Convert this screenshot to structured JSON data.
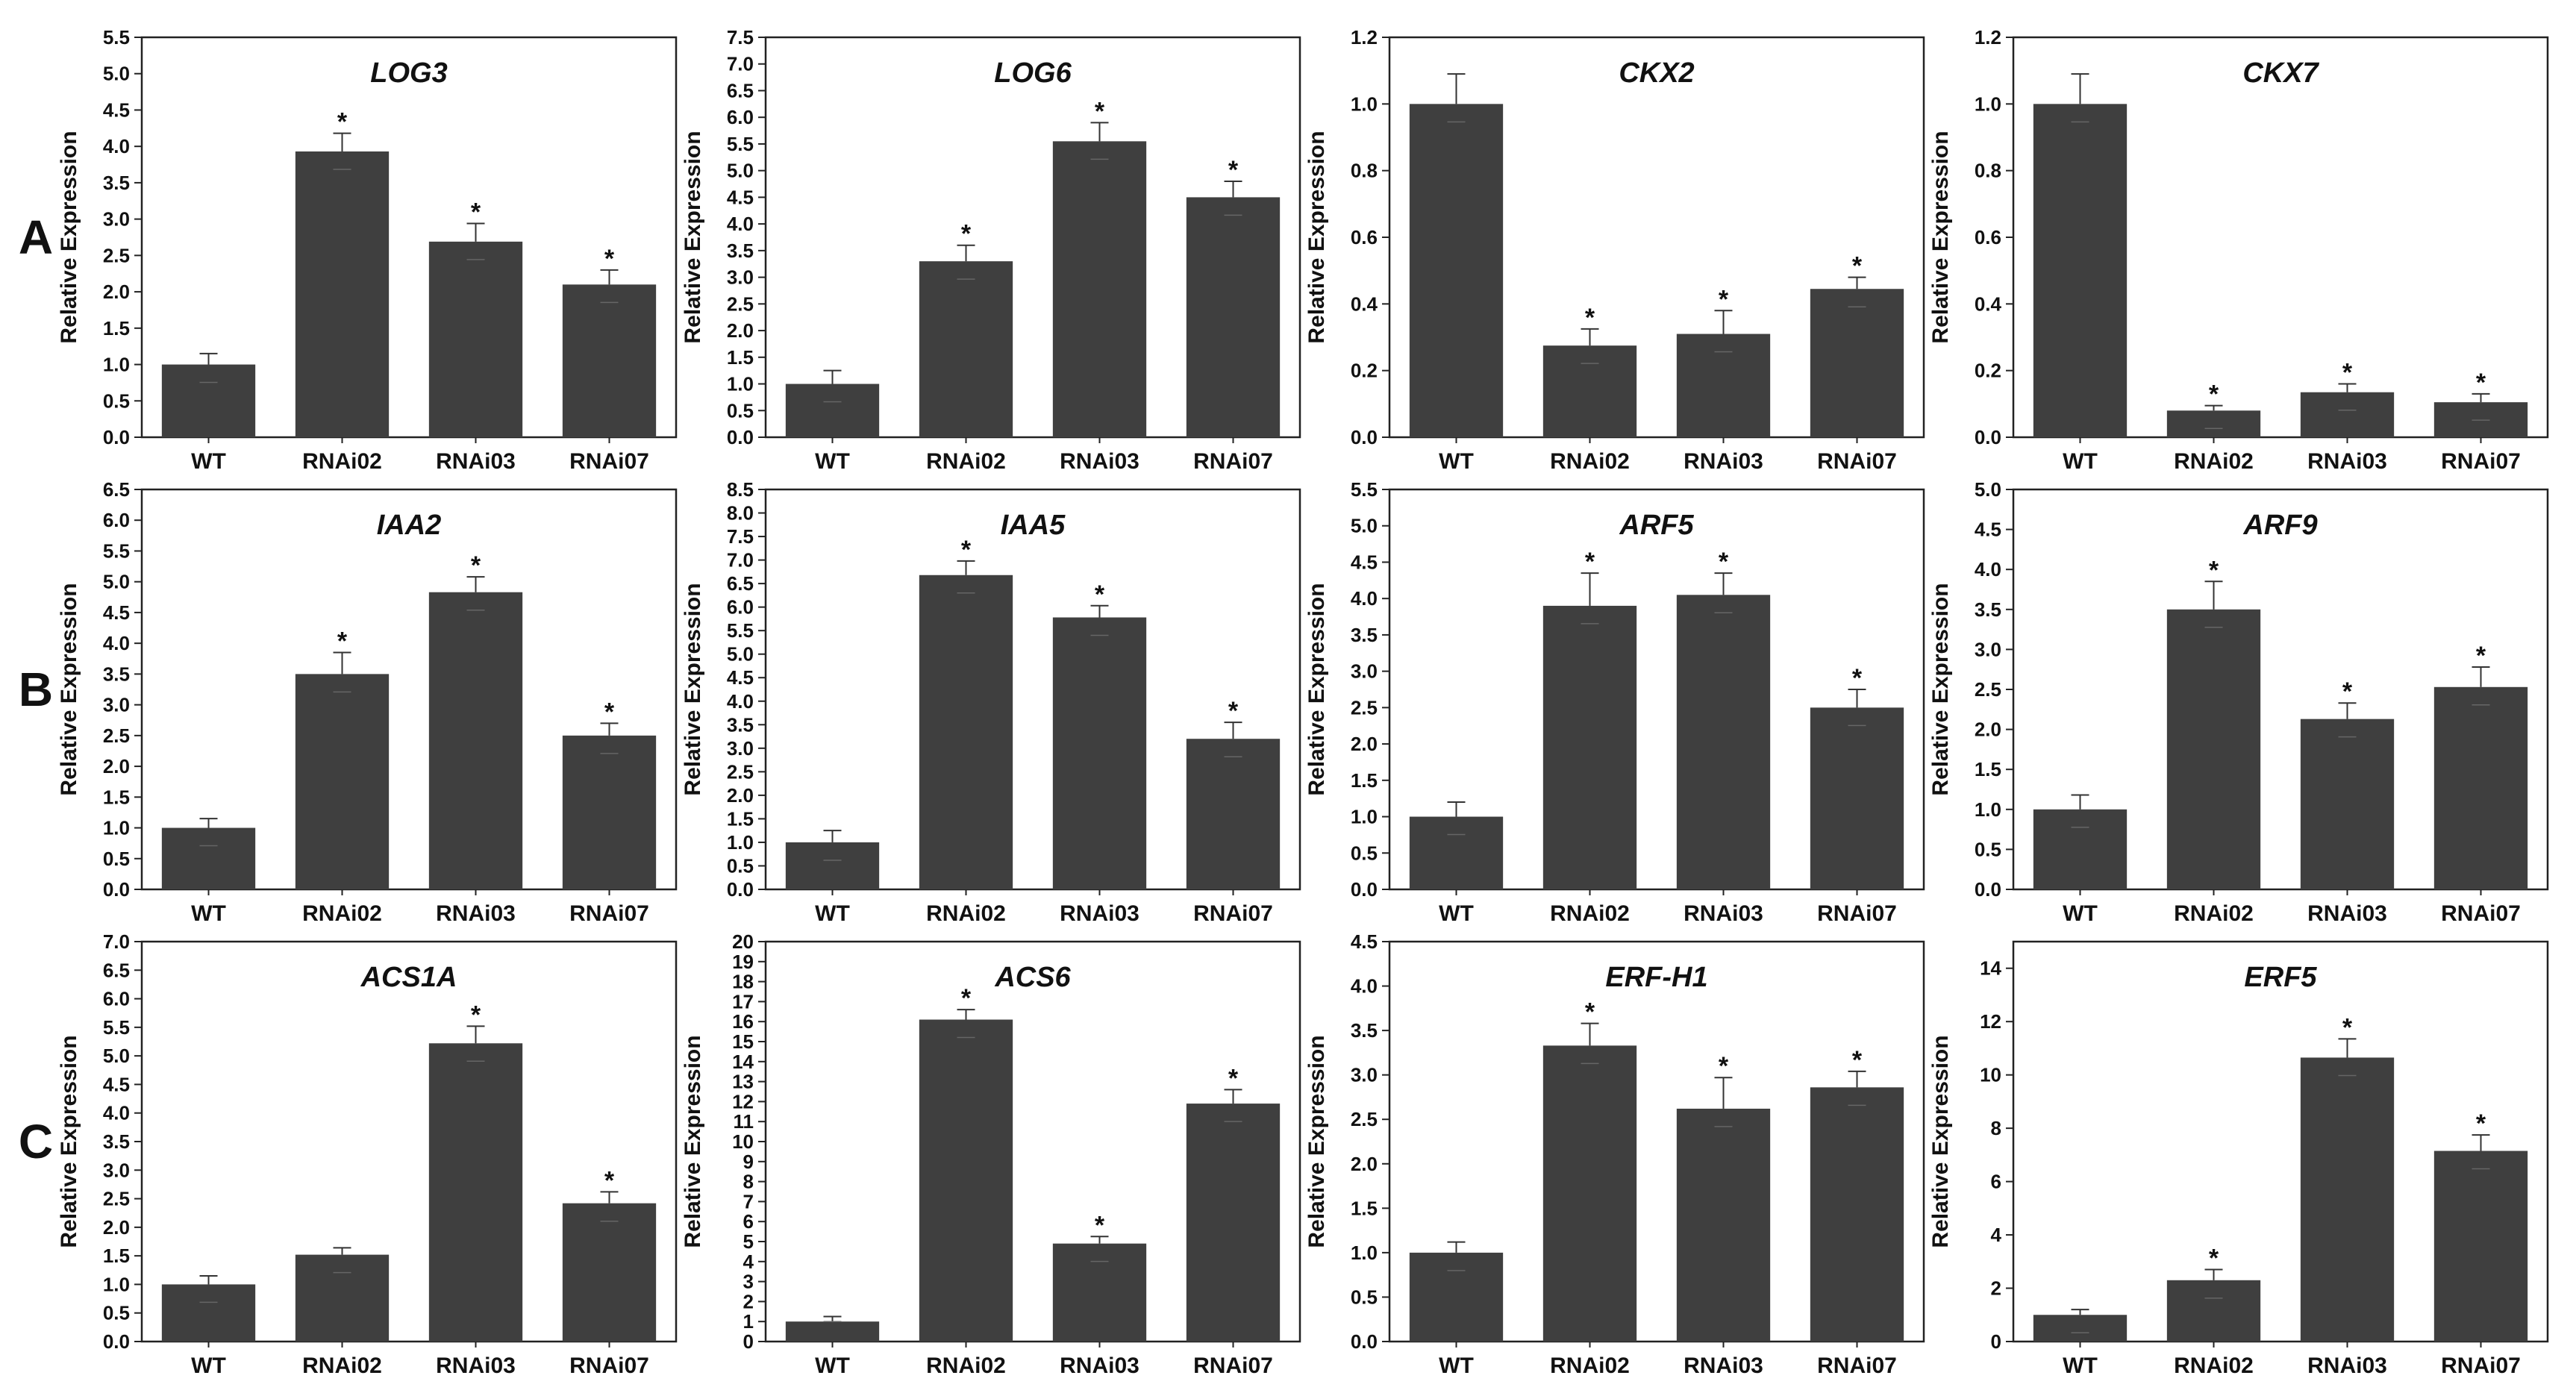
{
  "row_labels": [
    "A",
    "B",
    "C"
  ],
  "bar_color": "#3f3f3f",
  "chart_data": [
    {
      "type": "bar",
      "row": "A",
      "title": "LOG3",
      "ylabel": "Relative Expression",
      "categories": [
        "WT",
        "RNAi02",
        "RNAi03",
        "RNAi07"
      ],
      "values": [
        1.0,
        3.93,
        2.69,
        2.1
      ],
      "errors": [
        0.15,
        0.25,
        0.25,
        0.2
      ],
      "significant": [
        false,
        true,
        true,
        true
      ],
      "significance_label": "*",
      "ylim": [
        0,
        5.5
      ],
      "ytick_step": 0.5,
      "ytick_decimals": 1
    },
    {
      "type": "bar",
      "row": "A",
      "title": "LOG6",
      "ylabel": "Relative Expression",
      "categories": [
        "WT",
        "RNAi02",
        "RNAi03",
        "RNAi07"
      ],
      "values": [
        1.0,
        3.3,
        5.55,
        4.5
      ],
      "errors": [
        0.25,
        0.3,
        0.35,
        0.3
      ],
      "significant": [
        false,
        true,
        true,
        true
      ],
      "significance_label": "*",
      "ylim": [
        0,
        7.5
      ],
      "ytick_step": 0.5,
      "ytick_decimals": 1
    },
    {
      "type": "bar",
      "row": "A",
      "title": "CKX2",
      "ylabel": "Relative Expression",
      "categories": [
        "WT",
        "RNAi02",
        "RNAi03",
        "RNAi07"
      ],
      "values": [
        1.0,
        0.275,
        0.31,
        0.445
      ],
      "errors": [
        0.09,
        0.05,
        0.07,
        0.035
      ],
      "significant": [
        false,
        true,
        true,
        true
      ],
      "significance_label": "*",
      "ylim": [
        0,
        1.2
      ],
      "ytick_step": 0.2,
      "ytick_decimals": 1
    },
    {
      "type": "bar",
      "row": "A",
      "title": "CKX7",
      "ylabel": "Relative Expression",
      "categories": [
        "WT",
        "RNAi02",
        "RNAi03",
        "RNAi07"
      ],
      "values": [
        1.0,
        0.08,
        0.135,
        0.105
      ],
      "errors": [
        0.09,
        0.015,
        0.025,
        0.025
      ],
      "significant": [
        false,
        true,
        true,
        true
      ],
      "significance_label": "*",
      "ylim": [
        0,
        1.2
      ],
      "ytick_step": 0.2,
      "ytick_decimals": 1
    },
    {
      "type": "bar",
      "row": "B",
      "title": "IAA2",
      "ylabel": "Relative Expression",
      "categories": [
        "WT",
        "RNAi02",
        "RNAi03",
        "RNAi07"
      ],
      "values": [
        1.0,
        3.5,
        4.83,
        2.5
      ],
      "errors": [
        0.15,
        0.35,
        0.25,
        0.2
      ],
      "significant": [
        false,
        true,
        true,
        true
      ],
      "significance_label": "*",
      "ylim": [
        0,
        6.5
      ],
      "ytick_step": 0.5,
      "ytick_decimals": 1
    },
    {
      "type": "bar",
      "row": "B",
      "title": "IAA5",
      "ylabel": "Relative Expression",
      "categories": [
        "WT",
        "RNAi02",
        "RNAi03",
        "RNAi07"
      ],
      "values": [
        1.0,
        6.68,
        5.78,
        3.2
      ],
      "errors": [
        0.25,
        0.3,
        0.25,
        0.35
      ],
      "significant": [
        false,
        true,
        true,
        true
      ],
      "significance_label": "*",
      "ylim": [
        0,
        8.5
      ],
      "ytick_step": 0.5,
      "ytick_decimals": 1
    },
    {
      "type": "bar",
      "row": "B",
      "title": "ARF5",
      "ylabel": "Relative Expression",
      "categories": [
        "WT",
        "RNAi02",
        "RNAi03",
        "RNAi07"
      ],
      "values": [
        1.0,
        3.9,
        4.05,
        2.5
      ],
      "errors": [
        0.2,
        0.45,
        0.3,
        0.25
      ],
      "significant": [
        false,
        true,
        true,
        true
      ],
      "significance_label": "*",
      "ylim": [
        0,
        5.5
      ],
      "ytick_step": 0.5,
      "ytick_decimals": 1
    },
    {
      "type": "bar",
      "row": "B",
      "title": "ARF9",
      "ylabel": "Relative Expression",
      "categories": [
        "WT",
        "RNAi02",
        "RNAi03",
        "RNAi07"
      ],
      "values": [
        1.0,
        3.5,
        2.13,
        2.53
      ],
      "errors": [
        0.18,
        0.35,
        0.2,
        0.25
      ],
      "significant": [
        false,
        true,
        true,
        true
      ],
      "significance_label": "*",
      "ylim": [
        0,
        5.0
      ],
      "ytick_step": 0.5,
      "ytick_decimals": 1
    },
    {
      "type": "bar",
      "row": "C",
      "title": "ACS1A",
      "ylabel": "Relative Expression",
      "categories": [
        "WT",
        "RNAi02",
        "RNAi03",
        "RNAi07"
      ],
      "values": [
        1.0,
        1.52,
        5.22,
        2.42
      ],
      "errors": [
        0.15,
        0.12,
        0.3,
        0.2
      ],
      "significant": [
        false,
        false,
        true,
        true
      ],
      "significance_label": "*",
      "ylim": [
        0,
        7.0
      ],
      "ytick_step": 0.5,
      "ytick_decimals": 1
    },
    {
      "type": "bar",
      "row": "C",
      "title": "ACS6",
      "ylabel": "Relative Expression",
      "categories": [
        "WT",
        "RNAi02",
        "RNAi03",
        "RNAi07"
      ],
      "values": [
        1.0,
        16.1,
        4.9,
        11.9
      ],
      "errors": [
        0.25,
        0.5,
        0.35,
        0.7
      ],
      "significant": [
        false,
        true,
        true,
        true
      ],
      "significance_label": "*",
      "ylim": [
        0,
        20
      ],
      "ytick_step": 1,
      "ytick_decimals": 0
    },
    {
      "type": "bar",
      "row": "C",
      "title": "ERF-H1",
      "ylabel": "Relative Expression",
      "categories": [
        "WT",
        "RNAi02",
        "RNAi03",
        "RNAi07"
      ],
      "values": [
        1.0,
        3.33,
        2.62,
        2.86
      ],
      "errors": [
        0.12,
        0.25,
        0.35,
        0.18
      ],
      "significant": [
        false,
        true,
        true,
        true
      ],
      "significance_label": "*",
      "ylim": [
        0,
        4.5
      ],
      "ytick_step": 0.5,
      "ytick_decimals": 1
    },
    {
      "type": "bar",
      "row": "C",
      "title": "ERF5",
      "ylabel": "Relative Expression",
      "categories": [
        "WT",
        "RNAi02",
        "RNAi03",
        "RNAi07"
      ],
      "values": [
        1.0,
        2.3,
        10.65,
        7.15
      ],
      "errors": [
        0.2,
        0.4,
        0.7,
        0.6
      ],
      "significant": [
        false,
        true,
        true,
        true
      ],
      "significance_label": "*",
      "ylim": [
        0,
        15
      ],
      "ytick_step": 2,
      "ytick_decimals": 0,
      "ytick_max": 14
    }
  ]
}
